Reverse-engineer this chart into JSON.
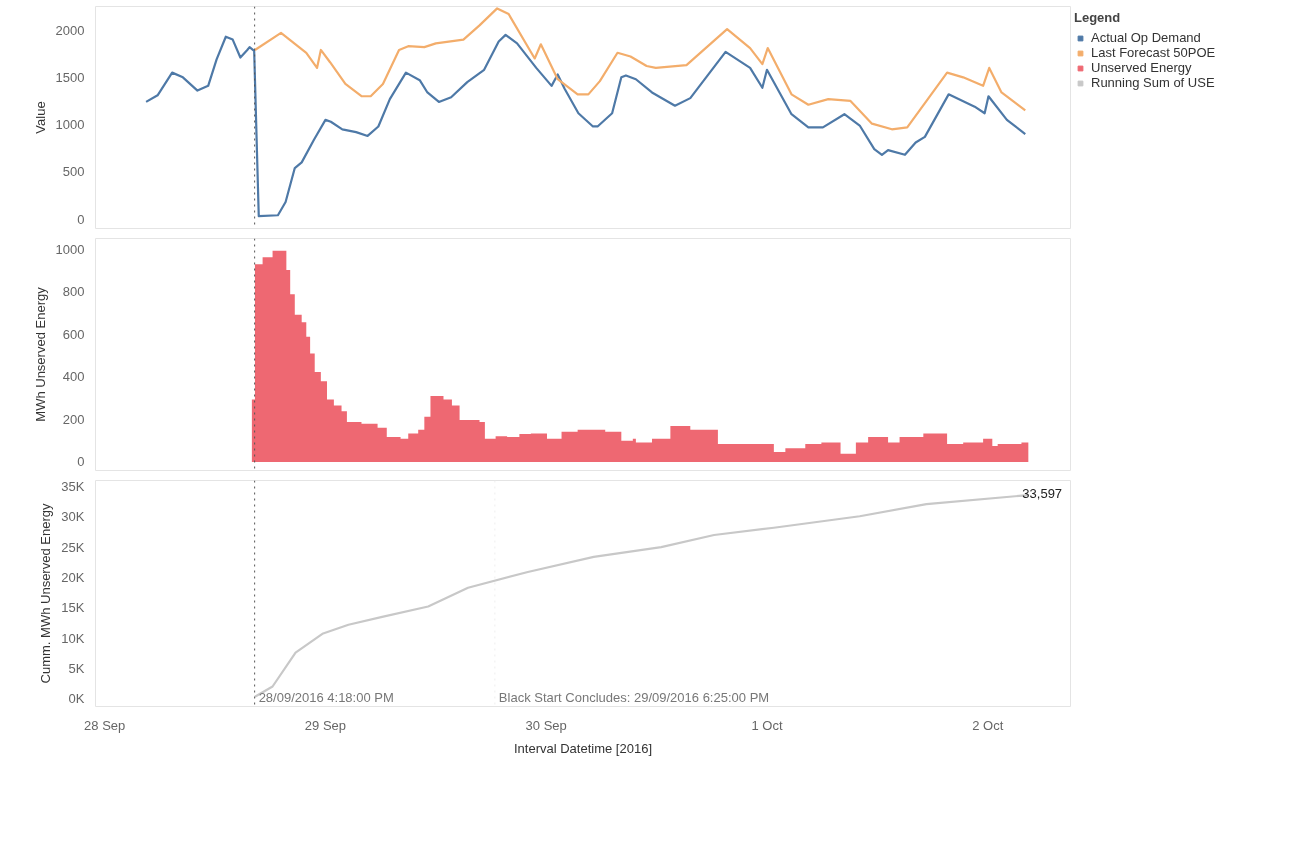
{
  "chart_data": [
    {
      "type": "line",
      "ylabel": "Value",
      "legend": "top right",
      "legend_title": "Legend",
      "tick_labels": "y",
      "xlim": [
        "2016-09-27T23:00",
        "2016-10-02T09:00"
      ],
      "ylim": [
        -100,
        2250
      ],
      "yticks": [
        0,
        500,
        1000,
        1500,
        2000
      ],
      "ref_lines": [
        {
          "axis": "x",
          "value": "2016-09-28T16:18",
          "label": null,
          "color": "#555555",
          "line_style": "dotted"
        }
      ],
      "series": [
        {
          "name": "Actual Op Demand",
          "color": "#4e79a7",
          "x": [
            "2016-09-28T04:30",
            "2016-09-28T05:45",
            "2016-09-28T07:20",
            "2016-09-28T08:30",
            "2016-09-28T10:05",
            "2016-09-28T11:15",
            "2016-09-28T12:10",
            "2016-09-28T13:10",
            "2016-09-28T13:55",
            "2016-09-28T14:45",
            "2016-09-28T15:30",
            "2016-09-28T15:45",
            "2016-09-28T16:15",
            "2016-09-28T16:45",
            "2016-09-28T18:50",
            "2016-09-28T19:40",
            "2016-09-28T20:40",
            "2016-09-28T21:25",
            "2016-09-28T22:45",
            "2016-09-29T00:00",
            "2016-09-29T00:35",
            "2016-09-29T01:50",
            "2016-09-29T03:20",
            "2016-09-29T04:35",
            "2016-09-29T05:45",
            "2016-09-29T07:00",
            "2016-09-29T08:45",
            "2016-09-29T10:15",
            "2016-09-29T11:05",
            "2016-09-29T12:20",
            "2016-09-29T13:40",
            "2016-09-29T15:25",
            "2016-09-29T17:15",
            "2016-09-29T18:50",
            "2016-09-29T19:35",
            "2016-09-29T20:50",
            "2016-09-29T22:55",
            "2016-09-30T00:35",
            "2016-09-30T01:15",
            "2016-09-30T02:00",
            "2016-09-30T03:30",
            "2016-09-30T05:05",
            "2016-09-30T05:35",
            "2016-09-30T07:10",
            "2016-09-30T08:10",
            "2016-09-30T08:40",
            "2016-09-30T09:45",
            "2016-09-30T11:30",
            "2016-09-30T14:00",
            "2016-09-30T15:40",
            "2016-09-30T19:30",
            "2016-09-30T22:10",
            "2016-09-30T23:30",
            "2016-10-01T00:00",
            "2016-10-01T02:40",
            "2016-10-01T04:30",
            "2016-10-01T06:05",
            "2016-10-01T08:25",
            "2016-10-01T10:05",
            "2016-10-01T11:40",
            "2016-10-01T12:30",
            "2016-10-01T13:10",
            "2016-10-01T15:00",
            "2016-10-01T16:10",
            "2016-10-01T17:10",
            "2016-10-01T19:45",
            "2016-10-01T22:35",
            "2016-10-01T23:40",
            "2016-10-02T00:05",
            "2016-10-02T02:05",
            "2016-10-02T04:05"
          ],
          "values": [
            1240,
            1310,
            1550,
            1500,
            1360,
            1410,
            1690,
            1930,
            1900,
            1710,
            1790,
            1820,
            1780,
            30,
            40,
            180,
            540,
            600,
            840,
            1050,
            1030,
            950,
            920,
            880,
            980,
            1270,
            1550,
            1470,
            1340,
            1240,
            1290,
            1450,
            1580,
            1880,
            1950,
            1860,
            1600,
            1410,
            1530,
            1380,
            1120,
            980,
            980,
            1120,
            1500,
            1520,
            1480,
            1340,
            1200,
            1280,
            1770,
            1600,
            1390,
            1580,
            1110,
            970,
            970,
            1110,
            990,
            740,
            680,
            730,
            680,
            810,
            870,
            1320,
            1190,
            1120,
            1300,
            1050,
            900
          ]
        },
        {
          "name": "Last Forecast 50POE",
          "color": "#f3ad6b",
          "x": [
            "2016-09-28T16:20",
            "2016-09-28T19:10",
            "2016-09-28T21:55",
            "2016-09-28T23:05",
            "2016-09-28T23:30",
            "2016-09-29T00:30",
            "2016-09-29T02:10",
            "2016-09-29T03:55",
            "2016-09-29T04:55",
            "2016-09-29T06:15",
            "2016-09-29T08:00",
            "2016-09-29T09:00",
            "2016-09-29T10:45",
            "2016-09-29T12:00",
            "2016-09-29T15:00",
            "2016-09-29T16:45",
            "2016-09-29T18:40",
            "2016-09-29T19:55",
            "2016-09-29T22:45",
            "2016-09-29T23:25",
            "2016-09-30T01:15",
            "2016-09-30T03:25",
            "2016-09-30T04:35",
            "2016-09-30T05:50",
            "2016-09-30T07:45",
            "2016-09-30T09:10",
            "2016-09-30T10:55",
            "2016-09-30T11:55",
            "2016-09-30T15:15",
            "2016-09-30T19:40",
            "2016-09-30T22:10",
            "2016-09-30T23:30",
            "2016-10-01T00:05",
            "2016-10-01T02:40",
            "2016-10-01T04:30",
            "2016-10-01T06:40",
            "2016-10-01T09:05",
            "2016-10-01T11:25",
            "2016-10-01T13:35",
            "2016-10-01T15:15",
            "2016-10-01T19:35",
            "2016-10-01T21:20",
            "2016-10-01T23:30",
            "2016-10-02T00:10",
            "2016-10-02T01:30",
            "2016-10-02T04:05"
          ],
          "values": [
            1790,
            1970,
            1760,
            1600,
            1790,
            1660,
            1430,
            1300,
            1300,
            1430,
            1790,
            1830,
            1820,
            1860,
            1900,
            2050,
            2230,
            2170,
            1700,
            1850,
            1480,
            1320,
            1320,
            1460,
            1760,
            1720,
            1620,
            1600,
            1630,
            2010,
            1810,
            1640,
            1810,
            1320,
            1210,
            1270,
            1250,
            1010,
            950,
            970,
            1550,
            1500,
            1410,
            1600,
            1340,
            1150
          ]
        }
      ]
    },
    {
      "type": "area",
      "ylabel": "MWh Unserved Energy",
      "tick_labels": "y",
      "xlim": [
        "2016-09-27T23:00",
        "2016-10-02T09:00"
      ],
      "ylim": [
        -40,
        1050
      ],
      "yticks": [
        0,
        200,
        400,
        600,
        800,
        1000
      ],
      "ref_lines": [
        {
          "axis": "x",
          "value": "2016-09-28T16:18",
          "label": null,
          "color": "#555555",
          "line_style": "dotted"
        }
      ],
      "series": [
        {
          "name": "Unserved Energy",
          "color": "#ee6872",
          "x": [
            "2016-09-28T16:00",
            "2016-09-28T16:20",
            "2016-09-28T17:10",
            "2016-09-28T18:15",
            "2016-09-28T19:45",
            "2016-09-28T20:10",
            "2016-09-28T20:40",
            "2016-09-28T21:25",
            "2016-09-28T21:55",
            "2016-09-28T22:20",
            "2016-09-28T22:50",
            "2016-09-28T23:30",
            "2016-09-29T00:10",
            "2016-09-29T00:55",
            "2016-09-29T01:45",
            "2016-09-29T02:20",
            "2016-09-29T03:55",
            "2016-09-29T05:40",
            "2016-09-29T06:40",
            "2016-09-29T08:10",
            "2016-09-29T09:00",
            "2016-09-29T10:05",
            "2016-09-29T10:45",
            "2016-09-29T11:25",
            "2016-09-29T12:50",
            "2016-09-29T13:45",
            "2016-09-29T14:35",
            "2016-09-29T16:45",
            "2016-09-29T17:20",
            "2016-09-29T18:30",
            "2016-09-29T19:45",
            "2016-09-29T21:05",
            "2016-09-29T22:20",
            "2016-09-30T00:05",
            "2016-09-30T01:40",
            "2016-09-30T03:25",
            "2016-09-30T06:25",
            "2016-09-30T08:10",
            "2016-09-30T09:25",
            "2016-09-30T09:45",
            "2016-09-30T11:30",
            "2016-09-30T13:30",
            "2016-09-30T15:40",
            "2016-09-30T18:40",
            "2016-10-01T00:45",
            "2016-10-01T02:00",
            "2016-10-01T04:10",
            "2016-10-01T05:55",
            "2016-10-01T08:00",
            "2016-10-01T09:40",
            "2016-10-01T11:00",
            "2016-10-01T13:10",
            "2016-10-01T14:25",
            "2016-10-01T17:00",
            "2016-10-01T19:35",
            "2016-10-01T21:20",
            "2016-10-01T23:30",
            "2016-10-02T00:30",
            "2016-10-02T01:05",
            "2016-10-02T03:40",
            "2016-10-02T04:25"
          ],
          "values": [
            293,
            929,
            962,
            992,
            902,
            788,
            692,
            657,
            588,
            510,
            423,
            379,
            293,
            265,
            238,
            188,
            180,
            161,
            117,
            109,
            134,
            152,
            213,
            310,
            293,
            265,
            197,
            188,
            109,
            121,
            117,
            131,
            134,
            109,
            142,
            152,
            142,
            100,
            109,
            92,
            109,
            169,
            152,
            84,
            47,
            65,
            84,
            92,
            39,
            92,
            117,
            92,
            117,
            134,
            84,
            92,
            109,
            75,
            84,
            92,
            92
          ]
        }
      ]
    },
    {
      "type": "line",
      "ylabel": "Cumm. MWh Unserved Energy",
      "xlabel": "Interval Datetime [2016]",
      "xlim": [
        "2016-09-27T23:00",
        "2016-10-02T09:00"
      ],
      "xticks": [
        {
          "value": "2016-09-28",
          "label": "28 Sep"
        },
        {
          "value": "2016-09-29",
          "label": "29 Sep"
        },
        {
          "value": "2016-09-30",
          "label": "30 Sep"
        },
        {
          "value": "2016-10-01",
          "label": "1 Oct"
        },
        {
          "value": "2016-10-02",
          "label": "2 Oct"
        }
      ],
      "ylim": [
        -1300,
        36000
      ],
      "yticks": [
        {
          "value": 0,
          "label": "0K"
        },
        {
          "value": 5000,
          "label": "5K"
        },
        {
          "value": 10000,
          "label": "10K"
        },
        {
          "value": 15000,
          "label": "15K"
        },
        {
          "value": 20000,
          "label": "20K"
        },
        {
          "value": 25000,
          "label": "25K"
        },
        {
          "value": 30000,
          "label": "30K"
        },
        {
          "value": 35000,
          "label": "35K"
        }
      ],
      "ref_lines": [
        {
          "axis": "x",
          "value": "2016-09-28T16:18",
          "label": "28/09/2016 4:18:00 PM",
          "color": "#555555",
          "line_style": "dotted"
        },
        {
          "axis": "x",
          "value": "2016-09-29T18:25",
          "label": "Black Start Concludes: 29/09/2016 6:25:00 PM",
          "color": "#eeeeee",
          "line_style": "dotted"
        }
      ],
      "series": [
        {
          "name": "Running Sum of USE",
          "color": "#c8c8c8",
          "x": [
            "2016-09-28T16:20",
            "2016-09-28T18:15",
            "2016-09-28T20:45",
            "2016-09-28T23:40",
            "2016-09-29T02:30",
            "2016-09-29T06:10",
            "2016-09-29T11:10",
            "2016-09-29T15:30",
            "2016-09-29T22:00",
            "2016-09-30T05:10",
            "2016-09-30T12:30",
            "2016-09-30T18:15",
            "2016-10-01T00:45",
            "2016-10-01T10:05",
            "2016-10-01T17:20",
            "2016-10-02T04:25"
          ],
          "values": [
            300,
            2000,
            7600,
            10700,
            12200,
            13500,
            15200,
            18300,
            20900,
            23400,
            25000,
            27000,
            28200,
            30100,
            32100,
            33597
          ],
          "value_labels": [
            null,
            null,
            null,
            null,
            null,
            null,
            null,
            null,
            null,
            null,
            null,
            null,
            null,
            null,
            null,
            "33,597"
          ]
        }
      ]
    }
  ]
}
